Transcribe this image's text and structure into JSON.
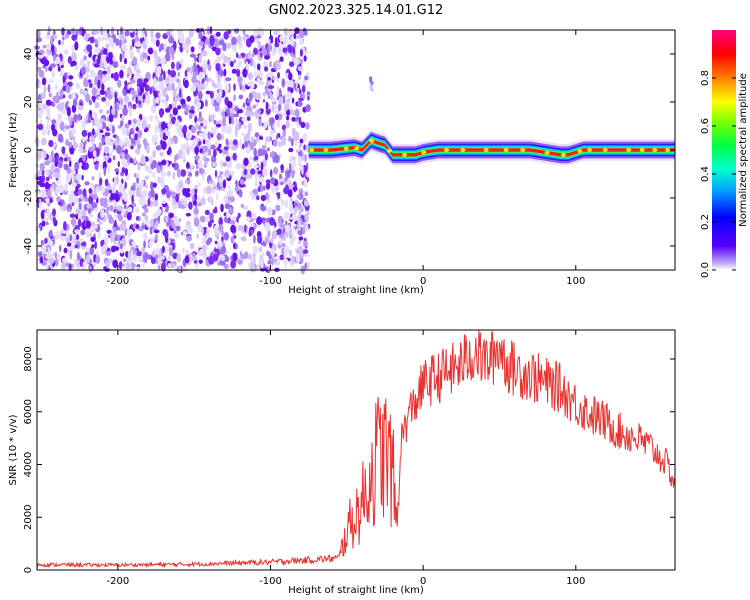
{
  "title": "GN02.2023.325.14.01.G12",
  "colors": {
    "snr_line": "#e8322e",
    "scatter_purple": "#7a2cf0",
    "background": "#ffffff"
  },
  "chart_data": [
    {
      "type": "heatmap",
      "xlabel": "Height of straight line (km)",
      "ylabel": "Frequency (Hz)",
      "xlim": [
        -253,
        165
      ],
      "ylim": [
        -50,
        50
      ],
      "xticks": [
        -200,
        -100,
        0,
        100
      ],
      "yticks": [
        -40,
        -20,
        0,
        20,
        40
      ],
      "noise_region_x": [
        -253,
        -75
      ],
      "signal_track": {
        "x": [
          -75,
          -60,
          -45,
          -40,
          -34,
          -30,
          -25,
          -20,
          -12,
          -5,
          0,
          10,
          30,
          50,
          70,
          80,
          90,
          95,
          105,
          130,
          165
        ],
        "freq_hz": [
          0,
          0,
          1,
          0,
          4,
          3,
          2,
          -2,
          -2,
          -2,
          -1,
          0,
          0,
          0,
          0,
          -1,
          -2,
          -2,
          0,
          0,
          0
        ]
      },
      "spike": {
        "x": -34,
        "freq_hz": [
          25,
          30
        ]
      },
      "colorbar": {
        "label": "Normalized spectral amplitude",
        "ticks": [
          0.0,
          0.2,
          0.4,
          0.6,
          0.8
        ],
        "range": [
          0,
          1
        ]
      },
      "grid": false
    },
    {
      "type": "line",
      "xlabel": "Height of straight line (km)",
      "ylabel": "SNR (10 * v/v)",
      "xlim": [
        -253,
        165
      ],
      "ylim": [
        0,
        9100
      ],
      "xticks": [
        -200,
        -100,
        0,
        100
      ],
      "yticks": [
        0,
        2000,
        4000,
        6000,
        8000
      ],
      "series": [
        {
          "x": [
            -253,
            -200,
            -150,
            -100,
            -75,
            -55,
            -50,
            -45,
            -40,
            -35,
            -30,
            -25,
            -20,
            -17,
            -15,
            -10,
            -5,
            0,
            5,
            10,
            15,
            20,
            25,
            30,
            35,
            40,
            45,
            50,
            55,
            60,
            70,
            80,
            90,
            100,
            110,
            120,
            130,
            140,
            150,
            160,
            165
          ],
          "y": [
            200,
            190,
            220,
            300,
            380,
            450,
            1500,
            2000,
            2500,
            3500,
            4300,
            4500,
            3700,
            1500,
            4800,
            5800,
            6400,
            7000,
            7200,
            7300,
            7500,
            7600,
            7800,
            8100,
            8300,
            7900,
            8000,
            8500,
            7800,
            7600,
            7400,
            7100,
            6900,
            6300,
            5900,
            5600,
            5200,
            5000,
            4600,
            4000,
            3200
          ]
        }
      ],
      "grid": false
    }
  ]
}
